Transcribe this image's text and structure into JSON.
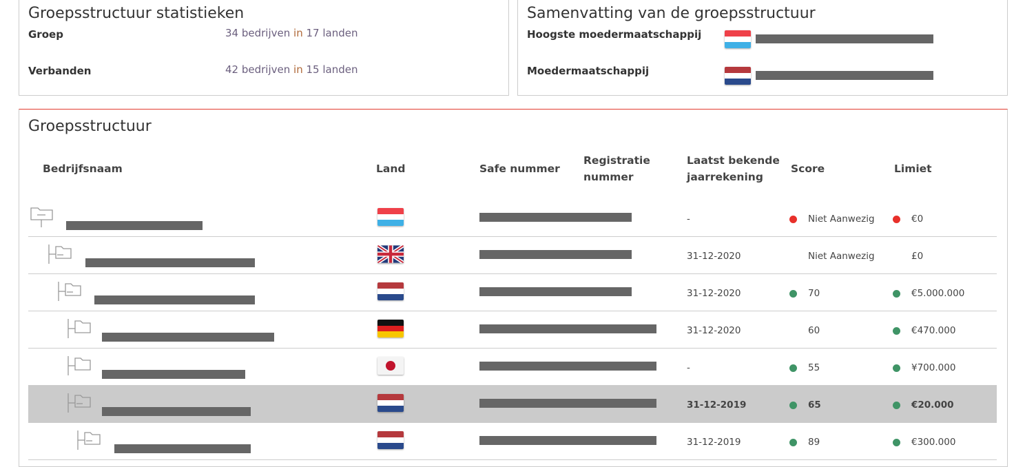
{
  "stats": {
    "title": "Groepsstructuur statistieken",
    "items": [
      {
        "label": "Groep",
        "count": "34 bedrijven",
        "in": "in",
        "countries": "17 landen"
      },
      {
        "label": "Verbanden",
        "count": "42 bedrijven",
        "in": "in",
        "countries": "15 landen"
      }
    ]
  },
  "summary": {
    "title": "Samenvatting van de groepsstructuur",
    "items": [
      {
        "label": "Hoogste moedermaatschappij",
        "flag": "luxembourg"
      },
      {
        "label": "Moedermaatschappij",
        "flag": "netherlands"
      }
    ]
  },
  "structure": {
    "title": "Groepsstructuur",
    "headers": {
      "name": "Bedrijfsnaam",
      "country": "Land",
      "safe": "Safe nummer",
      "reg1": "Registratie",
      "reg2": "nummer",
      "last1": "Laatst bekende",
      "last2": "jaarrekening",
      "score": "Score",
      "limit": "Limiet"
    },
    "rows": [
      {
        "level": 0,
        "icon": "folder-collapse-icon",
        "flag": "luxembourg",
        "date": "-",
        "score": "Niet Aanwezig",
        "score_status": "red",
        "limit": "€0",
        "limit_status": "red",
        "selected": false
      },
      {
        "level": 1,
        "icon": "folder-collapse-icon",
        "flag": "uk",
        "date": "31-12-2020",
        "score": "Niet Aanwezig",
        "score_status": "none",
        "limit": "£0",
        "limit_status": "none",
        "selected": false
      },
      {
        "level": 2,
        "icon": "folder-collapse-icon",
        "flag": "netherlands",
        "date": "31-12-2020",
        "score": "70",
        "score_status": "green",
        "limit": "€5.000.000",
        "limit_status": "green",
        "selected": false
      },
      {
        "level": 3,
        "icon": "folder-icon",
        "flag": "germany",
        "date": "31-12-2020",
        "score": "60",
        "score_status": "none",
        "limit": "€470.000",
        "limit_status": "green",
        "selected": false
      },
      {
        "level": 3,
        "icon": "folder-icon",
        "flag": "japan",
        "date": "-",
        "score": "55",
        "score_status": "green",
        "limit": "¥700.000",
        "limit_status": "green",
        "selected": false
      },
      {
        "level": 3,
        "icon": "folder-collapse-icon",
        "flag": "netherlands",
        "date": "31-12-2019",
        "score": "65",
        "score_status": "green",
        "limit": "€20.000",
        "limit_status": "green",
        "selected": true
      },
      {
        "level": 4,
        "icon": "folder-collapse-icon",
        "flag": "netherlands",
        "date": "31-12-2019",
        "score": "89",
        "score_status": "green",
        "limit": "€300.000",
        "limit_status": "green",
        "selected": false
      }
    ]
  },
  "colors": {
    "red": "#e8302a",
    "green": "#3f9466",
    "accent": "#e23b2e",
    "selected_row": "#cbcbcb"
  }
}
